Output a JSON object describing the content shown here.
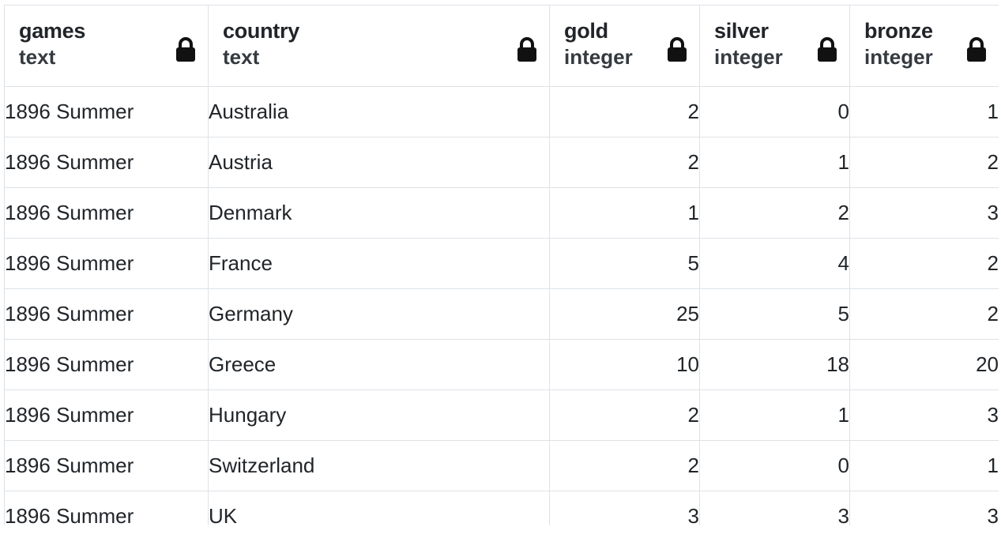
{
  "columns": [
    {
      "name": "games",
      "type": "text",
      "align": "left",
      "icon": "lock-icon"
    },
    {
      "name": "country",
      "type": "text",
      "align": "left",
      "icon": "lock-icon"
    },
    {
      "name": "gold",
      "type": "integer",
      "align": "right",
      "icon": "lock-icon"
    },
    {
      "name": "silver",
      "type": "integer",
      "align": "right",
      "icon": "lock-icon"
    },
    {
      "name": "bronze",
      "type": "integer",
      "align": "right",
      "icon": "lock-icon"
    }
  ],
  "rows": [
    [
      "1896 Summer",
      "Australia",
      "2",
      "0",
      "1"
    ],
    [
      "1896 Summer",
      "Austria",
      "2",
      "1",
      "2"
    ],
    [
      "1896 Summer",
      "Denmark",
      "1",
      "2",
      "3"
    ],
    [
      "1896 Summer",
      "France",
      "5",
      "4",
      "2"
    ],
    [
      "1896 Summer",
      "Germany",
      "25",
      "5",
      "2"
    ],
    [
      "1896 Summer",
      "Greece",
      "10",
      "18",
      "20"
    ],
    [
      "1896 Summer",
      "Hungary",
      "2",
      "1",
      "3"
    ],
    [
      "1896 Summer",
      "Switzerland",
      "2",
      "0",
      "1"
    ],
    [
      "1896 Summer",
      "UK",
      "3",
      "3",
      "3"
    ]
  ],
  "colors": {
    "border": "#dee2e6",
    "text": "#212529",
    "lock": "#111111"
  }
}
